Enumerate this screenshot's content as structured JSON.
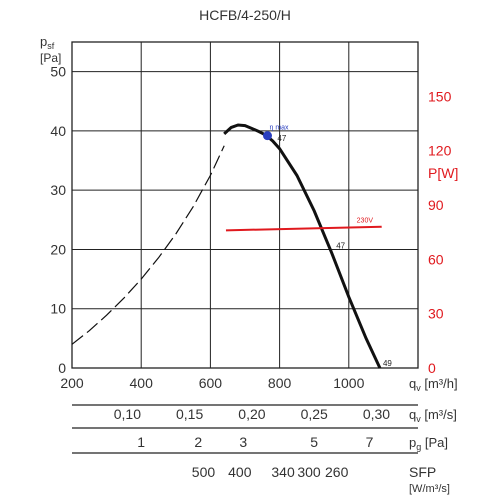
{
  "chart_data": {
    "type": "line",
    "title": "HCFB/4-250/H",
    "y_left": {
      "label_main": "p",
      "label_sub": "sf",
      "unit": "[Pa]",
      "range": [
        0,
        55
      ],
      "ticks": [
        0,
        10,
        20,
        30,
        40,
        50
      ]
    },
    "y_right": {
      "label": "P[W]",
      "range": [
        0,
        180
      ],
      "ticks": [
        0,
        30,
        60,
        90,
        120,
        150
      ],
      "color": "#e0191e"
    },
    "x": {
      "label_main": "q",
      "label_sub": "v",
      "unit": "[m³/h]",
      "range": [
        200,
        1200
      ],
      "ticks": [
        200,
        400,
        600,
        800,
        1000
      ]
    },
    "series": [
      {
        "kind": "pressure-dashed",
        "x": [
          200,
          250,
          300,
          350,
          400,
          450,
          500,
          550,
          600,
          640
        ],
        "y": [
          4.0,
          6.3,
          8.9,
          11.8,
          15.0,
          18.6,
          22.6,
          27.2,
          32.5,
          37.5
        ]
      },
      {
        "kind": "pressure-solid",
        "x": [
          640,
          660,
          680,
          700,
          720,
          740,
          760,
          780,
          800,
          850,
          900,
          950,
          1000,
          1050,
          1090
        ],
        "y": [
          39.5,
          40.6,
          41.0,
          40.9,
          40.4,
          39.9,
          39.3,
          38.3,
          37.0,
          32.5,
          26.5,
          19.5,
          12.0,
          5.0,
          0
        ]
      },
      {
        "kind": "power",
        "name": "230V",
        "x": [
          645,
          1095
        ],
        "y": [
          76,
          78
        ]
      }
    ],
    "annotations": [
      {
        "text": "η max",
        "x": 765,
        "y": 39.2,
        "marker": true
      },
      {
        "text": "47",
        "x": 785,
        "y": 38.0
      },
      {
        "text": "47",
        "x": 955,
        "y": 19.8
      },
      {
        "text": "49",
        "x": 1090,
        "y": 0
      }
    ],
    "secondary_axes": [
      {
        "name": "qv-m3s",
        "label_main": "q",
        "label_sub": "v",
        "unit": "[m³/s]",
        "ticks": [
          {
            "label": "0,10",
            "x": 360
          },
          {
            "label": "0,15",
            "x": 540
          },
          {
            "label": "0,20",
            "x": 720
          },
          {
            "label": "0,25",
            "x": 900
          },
          {
            "label": "0,30",
            "x": 1080
          }
        ]
      },
      {
        "name": "pg",
        "label_main": "p",
        "label_sub": "g",
        "unit": "[Pa]",
        "ticks": [
          {
            "label": "1",
            "x": 400
          },
          {
            "label": "2",
            "x": 565
          },
          {
            "label": "3",
            "x": 695
          },
          {
            "label": "5",
            "x": 900
          },
          {
            "label": "7",
            "x": 1060
          }
        ]
      },
      {
        "name": "sfp",
        "label": "SFP",
        "unit": "[W/m³/s]",
        "ticks": [
          {
            "label": "500",
            "x": 580
          },
          {
            "label": "400",
            "x": 685
          },
          {
            "label": "340",
            "x": 810
          },
          {
            "label": "300",
            "x": 885
          },
          {
            "label": "260",
            "x": 965
          }
        ]
      }
    ],
    "grid": true
  }
}
